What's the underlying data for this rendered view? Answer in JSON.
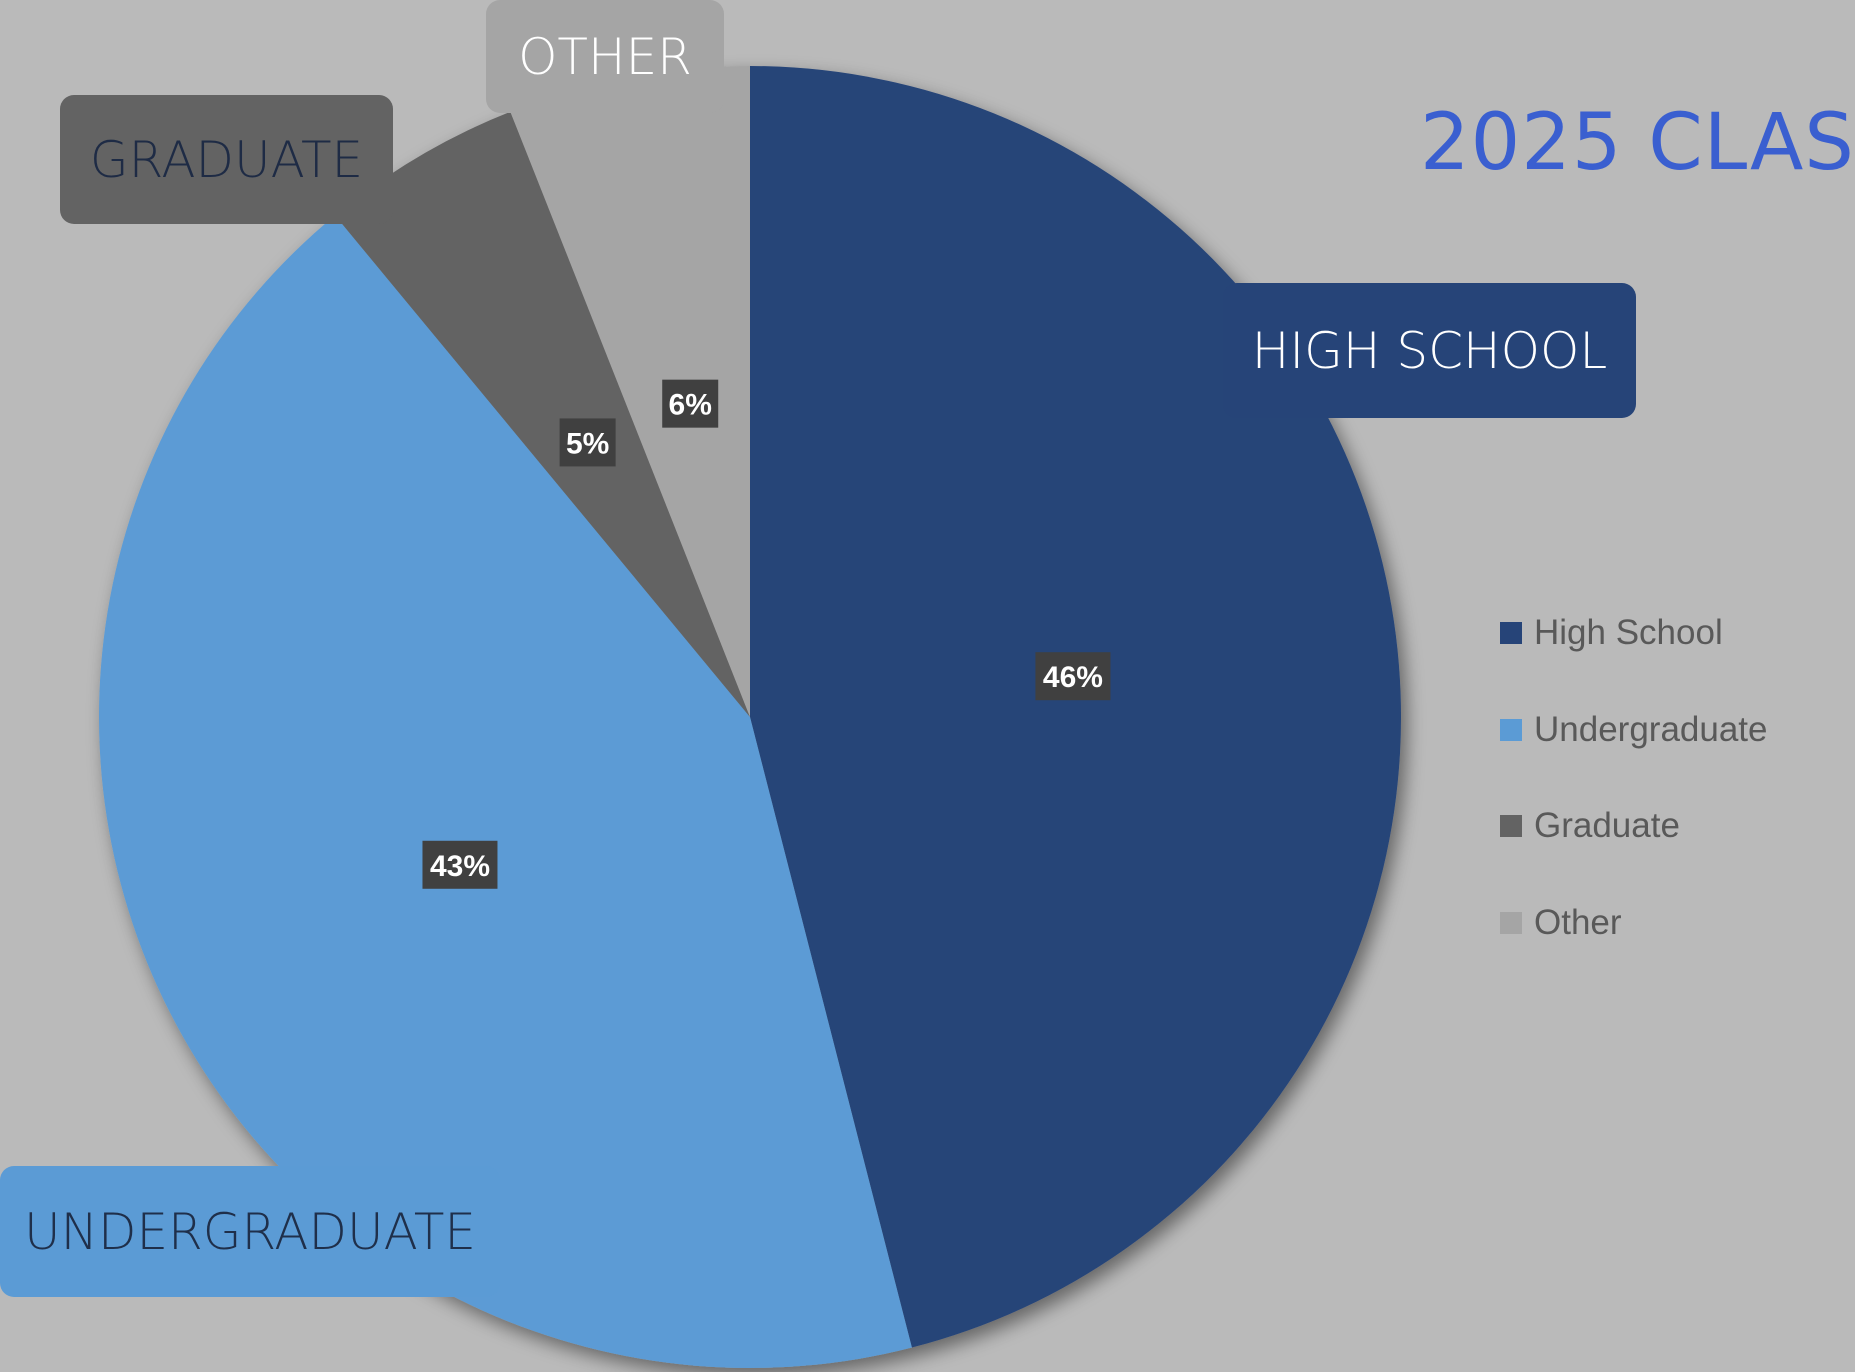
{
  "chart_data": {
    "type": "pie",
    "title": "2025 CLAS",
    "categories": [
      "High School",
      "Undergraduate",
      "Graduate",
      "Other"
    ],
    "values": [
      46,
      43,
      5,
      6
    ],
    "value_labels": [
      "46%",
      "43%",
      "5%",
      "6%"
    ],
    "callout_labels": [
      "HIGH SCHOOL",
      "UNDERGRADUATE",
      "GRADUATE",
      "OTHER"
    ],
    "colors": [
      "#264478",
      "#5b9bd5",
      "#636363",
      "#a5a5a5"
    ],
    "legend_position": "right"
  },
  "legend": {
    "items": [
      {
        "label": "High School",
        "color": "#264478"
      },
      {
        "label": "Undergraduate",
        "color": "#5b9bd5"
      },
      {
        "label": "Graduate",
        "color": "#636363"
      },
      {
        "label": "Other",
        "color": "#a5a5a5"
      }
    ]
  }
}
